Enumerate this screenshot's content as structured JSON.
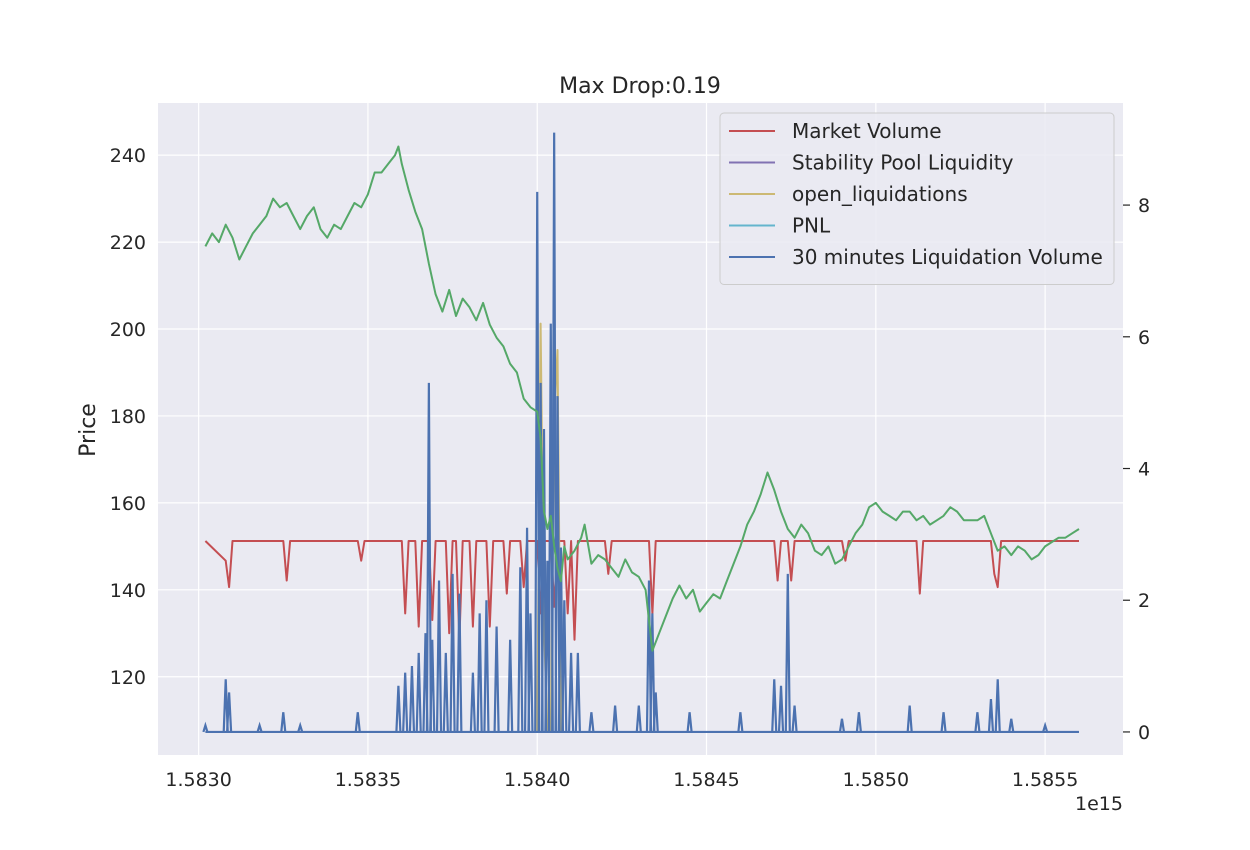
{
  "chart_data": {
    "type": "line",
    "title": "Max Drop:0.19",
    "xlabel": "",
    "x_offset_label": "1e15",
    "xlim": [
      1.58288,
      1.58573
    ],
    "xticks": [
      1.583,
      1.5835,
      1.584,
      1.5845,
      1.585,
      1.5855
    ],
    "xtick_labels": [
      "1.5830",
      "1.5835",
      "1.5840",
      "1.5845",
      "1.5850",
      "1.5855"
    ],
    "y_left": {
      "label": "Price",
      "label_color": "#55a868",
      "lim": [
        102,
        252
      ],
      "ticks": [
        120,
        140,
        160,
        180,
        200,
        220,
        240
      ],
      "tick_labels": [
        "120",
        "140",
        "160",
        "180",
        "200",
        "220",
        "240"
      ]
    },
    "y_right": {
      "lim": [
        -0.35,
        9.55
      ],
      "ticks": [
        0,
        2,
        4,
        6,
        8
      ],
      "tick_labels": [
        "0",
        "2",
        "4",
        "6",
        "8"
      ]
    },
    "grid": true,
    "legend_position": "top-right",
    "series": [
      {
        "name": "Price",
        "axis": "left",
        "color": "#55a868",
        "points": [
          [
            1.58302,
            219
          ],
          [
            1.58304,
            222
          ],
          [
            1.58306,
            220
          ],
          [
            1.58308,
            224
          ],
          [
            1.5831,
            221
          ],
          [
            1.58312,
            216
          ],
          [
            1.58314,
            219
          ],
          [
            1.58316,
            222
          ],
          [
            1.58318,
            224
          ],
          [
            1.5832,
            226
          ],
          [
            1.58322,
            230
          ],
          [
            1.58324,
            228
          ],
          [
            1.58326,
            229
          ],
          [
            1.58328,
            226
          ],
          [
            1.5833,
            223
          ],
          [
            1.58332,
            226
          ],
          [
            1.58334,
            228
          ],
          [
            1.58336,
            223
          ],
          [
            1.58338,
            221
          ],
          [
            1.5834,
            224
          ],
          [
            1.58342,
            223
          ],
          [
            1.58344,
            226
          ],
          [
            1.58346,
            229
          ],
          [
            1.58348,
            228
          ],
          [
            1.5835,
            231
          ],
          [
            1.58352,
            236
          ],
          [
            1.58354,
            236
          ],
          [
            1.58356,
            238
          ],
          [
            1.58358,
            240
          ],
          [
            1.58359,
            242
          ],
          [
            1.5836,
            238
          ],
          [
            1.58362,
            232
          ],
          [
            1.58364,
            227
          ],
          [
            1.58366,
            223
          ],
          [
            1.58368,
            215
          ],
          [
            1.5837,
            208
          ],
          [
            1.58372,
            204
          ],
          [
            1.58374,
            209
          ],
          [
            1.58376,
            203
          ],
          [
            1.58378,
            207
          ],
          [
            1.5838,
            205
          ],
          [
            1.58382,
            202
          ],
          [
            1.58384,
            206
          ],
          [
            1.58386,
            201
          ],
          [
            1.58388,
            198
          ],
          [
            1.5839,
            196
          ],
          [
            1.58392,
            192
          ],
          [
            1.58394,
            190
          ],
          [
            1.58396,
            184
          ],
          [
            1.58398,
            182
          ],
          [
            1.584,
            181
          ],
          [
            1.58401,
            175
          ],
          [
            1.58402,
            158
          ],
          [
            1.58403,
            154
          ],
          [
            1.58404,
            157
          ],
          [
            1.58405,
            150
          ],
          [
            1.58406,
            145
          ],
          [
            1.58407,
            142
          ],
          [
            1.58408,
            150
          ],
          [
            1.58409,
            147
          ],
          [
            1.58411,
            149
          ],
          [
            1.58413,
            152
          ],
          [
            1.58414,
            155
          ],
          [
            1.58416,
            146
          ],
          [
            1.58418,
            148
          ],
          [
            1.5842,
            147
          ],
          [
            1.58422,
            145
          ],
          [
            1.58424,
            143
          ],
          [
            1.58426,
            147
          ],
          [
            1.58428,
            144
          ],
          [
            1.5843,
            143
          ],
          [
            1.58432,
            140
          ],
          [
            1.58434,
            126
          ],
          [
            1.58436,
            130
          ],
          [
            1.58438,
            134
          ],
          [
            1.5844,
            138
          ],
          [
            1.58442,
            141
          ],
          [
            1.58444,
            138
          ],
          [
            1.58446,
            140
          ],
          [
            1.58448,
            135
          ],
          [
            1.5845,
            137
          ],
          [
            1.58452,
            139
          ],
          [
            1.58454,
            138
          ],
          [
            1.58456,
            142
          ],
          [
            1.58458,
            146
          ],
          [
            1.5846,
            150
          ],
          [
            1.58462,
            155
          ],
          [
            1.58464,
            158
          ],
          [
            1.58466,
            162
          ],
          [
            1.58468,
            167
          ],
          [
            1.5847,
            163
          ],
          [
            1.58472,
            158
          ],
          [
            1.58474,
            154
          ],
          [
            1.58476,
            152
          ],
          [
            1.58478,
            155
          ],
          [
            1.5848,
            153
          ],
          [
            1.58482,
            149
          ],
          [
            1.58484,
            148
          ],
          [
            1.58486,
            150
          ],
          [
            1.58488,
            146
          ],
          [
            1.5849,
            147
          ],
          [
            1.58492,
            150
          ],
          [
            1.58494,
            153
          ],
          [
            1.58496,
            155
          ],
          [
            1.58498,
            159
          ],
          [
            1.585,
            160
          ],
          [
            1.58502,
            158
          ],
          [
            1.58504,
            157
          ],
          [
            1.58506,
            156
          ],
          [
            1.58508,
            158
          ],
          [
            1.5851,
            158
          ],
          [
            1.58512,
            156
          ],
          [
            1.58514,
            157
          ],
          [
            1.58516,
            155
          ],
          [
            1.58518,
            156
          ],
          [
            1.5852,
            157
          ],
          [
            1.58522,
            159
          ],
          [
            1.58524,
            158
          ],
          [
            1.58526,
            156
          ],
          [
            1.58528,
            156
          ],
          [
            1.5853,
            156
          ],
          [
            1.58532,
            157
          ],
          [
            1.58534,
            153
          ],
          [
            1.58536,
            149
          ],
          [
            1.58538,
            150
          ],
          [
            1.5854,
            148
          ],
          [
            1.58542,
            150
          ],
          [
            1.58544,
            149
          ],
          [
            1.58546,
            147
          ],
          [
            1.58548,
            148
          ],
          [
            1.5855,
            150
          ],
          [
            1.58552,
            151
          ],
          [
            1.58554,
            152
          ],
          [
            1.58556,
            152
          ],
          [
            1.58558,
            153
          ],
          [
            1.5856,
            154
          ]
        ]
      },
      {
        "name": "Market Volume",
        "axis": "right",
        "color": "#c44e52",
        "baseline": 2.9,
        "points": [
          [
            1.58302,
            2.9
          ],
          [
            1.58308,
            2.6
          ],
          [
            1.58309,
            2.2
          ],
          [
            1.5831,
            2.9
          ],
          [
            1.58325,
            2.9
          ],
          [
            1.58326,
            2.3
          ],
          [
            1.58327,
            2.9
          ],
          [
            1.58347,
            2.9
          ],
          [
            1.58348,
            2.6
          ],
          [
            1.58349,
            2.9
          ],
          [
            1.5836,
            2.9
          ],
          [
            1.58361,
            1.8
          ],
          [
            1.58362,
            2.9
          ],
          [
            1.58364,
            2.9
          ],
          [
            1.58365,
            1.6
          ],
          [
            1.58366,
            2.9
          ],
          [
            1.58368,
            2.9
          ],
          [
            1.58369,
            1.7
          ],
          [
            1.5837,
            2.9
          ],
          [
            1.58373,
            2.9
          ],
          [
            1.58374,
            1.5
          ],
          [
            1.58375,
            2.9
          ],
          [
            1.58376,
            2.9
          ],
          [
            1.58377,
            1.4
          ],
          [
            1.58378,
            2.9
          ],
          [
            1.5838,
            2.9
          ],
          [
            1.58381,
            1.6
          ],
          [
            1.58382,
            2.9
          ],
          [
            1.58385,
            2.9
          ],
          [
            1.58386,
            1.6
          ],
          [
            1.58387,
            2.9
          ],
          [
            1.5839,
            2.9
          ],
          [
            1.58391,
            2.1
          ],
          [
            1.58392,
            2.9
          ],
          [
            1.58395,
            2.9
          ],
          [
            1.58396,
            2.2
          ],
          [
            1.58397,
            2.9
          ],
          [
            1.584,
            2.9
          ],
          [
            1.58401,
            1.8
          ],
          [
            1.58402,
            2.9
          ],
          [
            1.58404,
            2.9
          ],
          [
            1.58405,
            1.9
          ],
          [
            1.58406,
            2.9
          ],
          [
            1.58408,
            2.9
          ],
          [
            1.58409,
            1.8
          ],
          [
            1.5841,
            2.9
          ],
          [
            1.58411,
            1.4
          ],
          [
            1.58412,
            2.9
          ],
          [
            1.5842,
            2.9
          ],
          [
            1.58421,
            2.4
          ],
          [
            1.58422,
            2.9
          ],
          [
            1.58433,
            2.9
          ],
          [
            1.58434,
            1.8
          ],
          [
            1.58435,
            2.9
          ],
          [
            1.5847,
            2.9
          ],
          [
            1.58471,
            2.3
          ],
          [
            1.58472,
            2.9
          ],
          [
            1.58474,
            2.9
          ],
          [
            1.58475,
            2.3
          ],
          [
            1.58476,
            2.9
          ],
          [
            1.5849,
            2.9
          ],
          [
            1.58491,
            2.6
          ],
          [
            1.58492,
            2.9
          ],
          [
            1.58512,
            2.9
          ],
          [
            1.58513,
            2.1
          ],
          [
            1.58514,
            2.9
          ],
          [
            1.58534,
            2.9
          ],
          [
            1.58535,
            2.4
          ],
          [
            1.58536,
            2.2
          ],
          [
            1.58537,
            2.9
          ],
          [
            1.5856,
            2.9
          ]
        ]
      },
      {
        "name": "Stability Pool Liquidity",
        "axis": "right",
        "color": "#8172b3",
        "points": []
      },
      {
        "name": "open_liquidations",
        "axis": "right",
        "color": "#ccb974",
        "points": [
          [
            1.584,
            0
          ],
          [
            1.58401,
            6.2
          ],
          [
            1.58402,
            1.6
          ],
          [
            1.58403,
            0
          ],
          [
            1.58404,
            0
          ],
          [
            1.58405,
            4.8
          ],
          [
            1.58406,
            5.8
          ],
          [
            1.58407,
            0
          ]
        ]
      },
      {
        "name": "PNL",
        "axis": "right",
        "color": "#64b5cd",
        "points": []
      },
      {
        "name": "30 minutes Liquidation Volume",
        "axis": "right",
        "color": "#4c72b0",
        "baseline": 0,
        "spikes": [
          [
            1.58302,
            0.1
          ],
          [
            1.58308,
            0.8
          ],
          [
            1.58309,
            0.6
          ],
          [
            1.58318,
            0.1
          ],
          [
            1.58325,
            0.3
          ],
          [
            1.5833,
            0.1
          ],
          [
            1.58347,
            0.3
          ],
          [
            1.58359,
            0.7
          ],
          [
            1.58361,
            0.9
          ],
          [
            1.58363,
            1.0
          ],
          [
            1.58365,
            1.2
          ],
          [
            1.58367,
            1.5
          ],
          [
            1.58368,
            5.3
          ],
          [
            1.58369,
            1.4
          ],
          [
            1.58371,
            2.3
          ],
          [
            1.58373,
            1.2
          ],
          [
            1.58375,
            2.4
          ],
          [
            1.58377,
            2.1
          ],
          [
            1.58381,
            0.9
          ],
          [
            1.58383,
            1.8
          ],
          [
            1.58385,
            2.0
          ],
          [
            1.58388,
            1.6
          ],
          [
            1.58392,
            1.4
          ],
          [
            1.58395,
            2.5
          ],
          [
            1.58397,
            3.1
          ],
          [
            1.58398,
            1.8
          ],
          [
            1.584,
            8.2
          ],
          [
            1.58401,
            5.3
          ],
          [
            1.58402,
            4.6
          ],
          [
            1.58403,
            2.6
          ],
          [
            1.58404,
            6.2
          ],
          [
            1.58405,
            9.1
          ],
          [
            1.58406,
            5.1
          ],
          [
            1.58407,
            2.8
          ],
          [
            1.58408,
            2.0
          ],
          [
            1.5841,
            1.2
          ],
          [
            1.58412,
            1.2
          ],
          [
            1.58416,
            0.3
          ],
          [
            1.58423,
            0.4
          ],
          [
            1.5843,
            0.4
          ],
          [
            1.58433,
            2.3
          ],
          [
            1.58434,
            1.8
          ],
          [
            1.58435,
            0.6
          ],
          [
            1.58445,
            0.3
          ],
          [
            1.5846,
            0.3
          ],
          [
            1.5847,
            0.8
          ],
          [
            1.58472,
            0.7
          ],
          [
            1.58474,
            2.4
          ],
          [
            1.58476,
            0.4
          ],
          [
            1.5849,
            0.2
          ],
          [
            1.58495,
            0.3
          ],
          [
            1.5851,
            0.4
          ],
          [
            1.5852,
            0.3
          ],
          [
            1.5853,
            0.3
          ],
          [
            1.58534,
            0.5
          ],
          [
            1.58536,
            0.8
          ],
          [
            1.5854,
            0.2
          ],
          [
            1.5855,
            0.1
          ]
        ]
      }
    ],
    "legend": [
      {
        "label": "Market Volume",
        "color": "#c44e52"
      },
      {
        "label": "Stability Pool Liquidity",
        "color": "#8172b3"
      },
      {
        "label": "open_liquidations",
        "color": "#ccb974"
      },
      {
        "label": "PNL",
        "color": "#64b5cd"
      },
      {
        "label": "30 minutes Liquidation Volume",
        "color": "#4c72b0"
      }
    ],
    "colors": {
      "plot_background": "#eaeaf2",
      "grid": "#ffffff",
      "text": "#262626"
    }
  }
}
